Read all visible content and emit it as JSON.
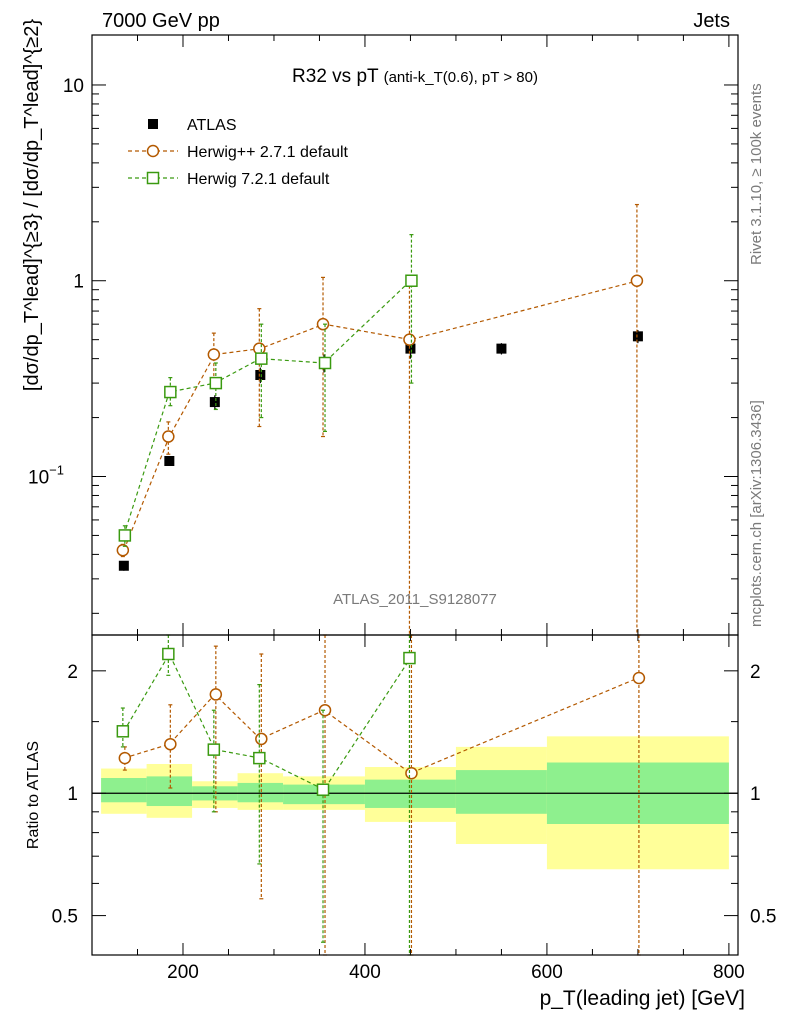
{
  "header": {
    "left": "7000 GeV pp",
    "right": "Jets"
  },
  "side_notes": {
    "top": "Rivet 3.1.10, ≥ 100k events",
    "bottom": "mcplots.cern.ch [arXiv:1306.3436]"
  },
  "watermark": "ATLAS_2011_S9128077",
  "ratio_ylabel": "Ratio to ATLAS",
  "chart_data": [
    {
      "type": "scatter",
      "title": "R32 vs pT",
      "title_suffix": "(anti-k_T(0.6), pT > 80)",
      "ylabel": "[dσ/dp_T^lead]^{≥3} / [dσ/dp_T^lead]^{≥2}",
      "yscale": "log",
      "ylim": [
        0.0155,
        18
      ],
      "xlim": [
        100,
        810
      ],
      "ytick_labels": [
        {
          "value": 0.1,
          "label": "10",
          "exp": "−1"
        },
        {
          "value": 1,
          "label": "1",
          "exp": ""
        },
        {
          "value": 10,
          "label": "10",
          "exp": ""
        }
      ],
      "legend_position": "top-left",
      "series": [
        {
          "name": "ATLAS",
          "marker": "filled-square",
          "color": "#000000",
          "x": [
            135,
            185,
            235,
            285,
            355,
            450,
            550,
            700
          ],
          "y": [
            0.035,
            0.12,
            0.24,
            0.33,
            0.38,
            0.45,
            0.45,
            0.52
          ],
          "yerr": [
            0.002,
            0.006,
            0.02,
            0.03,
            0.04,
            0.05,
            0.03,
            0.04
          ]
        },
        {
          "name": "Herwig++ 2.7.1 default",
          "marker": "open-circle",
          "color": "#b35900",
          "x": [
            135,
            185,
            235,
            285,
            355,
            450,
            700
          ],
          "y": [
            0.042,
            0.16,
            0.42,
            0.45,
            0.6,
            0.5,
            1.0
          ],
          "ylo": [
            0.039,
            0.13,
            0.3,
            0.18,
            0.16,
            0.001,
            0.001
          ],
          "yhi": [
            0.045,
            0.19,
            0.54,
            0.72,
            1.04,
            1.0,
            2.45
          ]
        },
        {
          "name": "Herwig 7.2.1 default",
          "marker": "open-square",
          "color": "#3a9a10",
          "x": [
            135,
            185,
            235,
            285,
            355,
            450
          ],
          "y": [
            0.05,
            0.27,
            0.3,
            0.4,
            0.38,
            1.0
          ],
          "ylo": [
            0.044,
            0.23,
            0.22,
            0.2,
            0.17,
            0.3
          ],
          "yhi": [
            0.056,
            0.32,
            0.38,
            0.6,
            0.6,
            1.72
          ]
        }
      ]
    },
    {
      "type": "scatter",
      "ylabel": "Ratio to ATLAS",
      "xlabel": "p_T(leading jet) [GeV]",
      "yscale": "log",
      "ylim": [
        0.4,
        2.45
      ],
      "xlim": [
        100,
        810
      ],
      "yticks": [
        0.5,
        1,
        2
      ],
      "ytick_labels": [
        "0.5",
        "1",
        "2"
      ],
      "xticks": [
        200,
        400,
        600,
        800
      ],
      "xtick_labels": [
        "200",
        "400",
        "600",
        "800"
      ],
      "reference_line": 1,
      "bands": [
        {
          "x0": 110,
          "x1": 160,
          "inner": [
            0.95,
            1.09
          ],
          "outer": [
            0.89,
            1.15
          ]
        },
        {
          "x0": 160,
          "x1": 210,
          "inner": [
            0.93,
            1.1
          ],
          "outer": [
            0.87,
            1.18
          ]
        },
        {
          "x0": 210,
          "x1": 260,
          "inner": [
            0.96,
            1.04
          ],
          "outer": [
            0.92,
            1.07
          ]
        },
        {
          "x0": 260,
          "x1": 310,
          "inner": [
            0.95,
            1.06
          ],
          "outer": [
            0.91,
            1.12
          ]
        },
        {
          "x0": 310,
          "x1": 400,
          "inner": [
            0.94,
            1.05
          ],
          "outer": [
            0.91,
            1.1
          ]
        },
        {
          "x0": 400,
          "x1": 500,
          "inner": [
            0.92,
            1.08
          ],
          "outer": [
            0.85,
            1.16
          ]
        },
        {
          "x0": 500,
          "x1": 600,
          "inner": [
            0.89,
            1.14
          ],
          "outer": [
            0.75,
            1.3
          ]
        },
        {
          "x0": 600,
          "x1": 800,
          "inner": [
            0.84,
            1.19
          ],
          "outer": [
            0.65,
            1.38
          ]
        }
      ],
      "band_colors": {
        "inner": "#8ef08e",
        "outer": "#ffff99"
      },
      "series": [
        {
          "name": "Herwig++ 2.7.1 default",
          "marker": "open-circle",
          "color": "#b35900",
          "x": [
            135,
            185,
            235,
            285,
            355,
            450,
            700
          ],
          "y": [
            1.22,
            1.32,
            1.75,
            1.36,
            1.6,
            1.12,
            1.92
          ],
          "ylo": [
            1.14,
            1.03,
            0.9,
            0.55,
            0.38,
            0.001,
            0.001
          ],
          "yhi": [
            1.3,
            1.65,
            2.3,
            2.2,
            2.6,
            2.6,
            2.6
          ]
        },
        {
          "name": "Herwig 7.2.1 default",
          "marker": "open-square",
          "color": "#3a9a10",
          "x": [
            135,
            185,
            235,
            285,
            355,
            450
          ],
          "y": [
            1.42,
            2.2,
            1.28,
            1.22,
            1.02,
            2.15
          ],
          "ylo": [
            1.3,
            1.95,
            0.9,
            0.67,
            0.43,
            0.001
          ],
          "yhi": [
            1.62,
            2.45,
            1.6,
            1.85,
            1.6,
            2.6
          ]
        }
      ]
    }
  ]
}
